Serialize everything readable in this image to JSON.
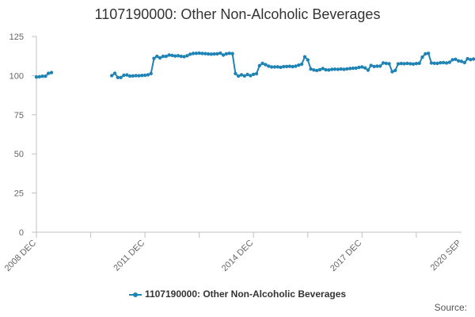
{
  "chart_data": {
    "type": "line",
    "title": "1107190000: Other Non-Alcoholic Beverages",
    "xlabel": "",
    "ylabel": "",
    "ylim": [
      0,
      125
    ],
    "y_ticks": [
      0,
      25,
      50,
      75,
      100,
      125
    ],
    "x_tick_labels": [
      "2008 DEC",
      "2011 DEC",
      "2014 DEC",
      "2017 DEC",
      "2020 SEP"
    ],
    "grid": false,
    "legend_position": "bottom",
    "series_color": "#1f84b5",
    "series": [
      {
        "name": "1107190000: Other Non-Alcoholic Beverages",
        "segments": [
          {
            "start": "2008-12",
            "values": [
              99.1,
              99.3,
              99.6,
              99.6,
              101.4,
              101.9
            ]
          },
          {
            "start": "2011-01",
            "values": [
              100.0,
              101.5,
              98.8,
              98.8,
              100.2,
              100.4,
              99.7,
              99.8,
              100.0,
              99.9,
              100.1,
              100.2,
              100.5,
              101.3,
              111.0,
              112.3,
              111.3,
              112.3,
              112.3,
              113.1,
              112.9,
              112.5,
              112.7,
              112.3,
              112.1,
              112.7,
              113.6,
              114.1,
              114.2,
              114.3,
              114.1,
              114.0,
              113.8,
              113.7,
              113.8,
              113.9,
              114.3,
              113.1,
              113.9,
              114.2,
              114.0,
              101.3,
              99.7,
              100.5,
              99.8,
              100.7,
              100.0,
              100.8,
              101.2,
              106.4,
              107.8,
              107.0,
              106.0,
              105.5,
              105.5,
              105.6,
              105.3,
              105.7,
              105.8,
              105.9,
              105.7,
              106.0,
              106.7,
              107.3,
              112.0,
              110.0,
              104.2,
              103.6,
              103.3,
              103.8,
              104.5,
              103.7,
              103.6,
              104.0,
              104.1,
              104.0,
              104.2,
              104.0,
              104.3,
              104.5,
              104.7,
              104.8,
              105.2,
              105.5,
              104.9,
              103.5,
              106.5,
              105.8,
              106.0,
              106.0,
              108.1,
              107.8,
              107.6,
              102.5,
              103.3,
              107.5,
              107.7,
              107.6,
              107.8,
              107.6,
              107.4,
              107.7,
              107.9,
              111.8,
              113.9,
              114.2,
              108.1,
              107.9,
              107.8,
              108.2,
              108.3,
              108.1,
              108.5,
              110.1,
              110.4,
              109.4,
              109.1,
              108.3,
              110.8,
              110.2,
              110.6,
              111.0,
              111.3
            ]
          }
        ]
      }
    ],
    "source_label": "Source:"
  }
}
